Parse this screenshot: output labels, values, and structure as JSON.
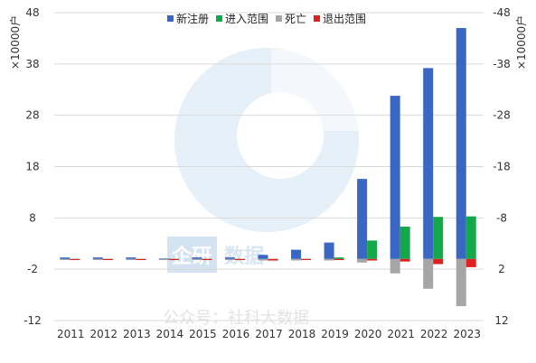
{
  "chart_data": {
    "type": "bar",
    "title": "",
    "categories": [
      "2011",
      "2012",
      "2013",
      "2014",
      "2015",
      "2016",
      "2017",
      "2018",
      "2019",
      "2020",
      "2021",
      "2022",
      "2023"
    ],
    "series": [
      {
        "name": "新注册",
        "color": "#3a66c4",
        "values": [
          0.3,
          0.3,
          0.3,
          0.1,
          0.3,
          0.3,
          0.8,
          1.8,
          3.2,
          15.6,
          31.8,
          37.2,
          45.0
        ]
      },
      {
        "name": "进入范围",
        "color": "#15a84a",
        "values": [
          0.0,
          0.0,
          0.0,
          0.0,
          0.0,
          0.0,
          -0.1,
          0.0,
          0.3,
          3.6,
          6.3,
          8.2,
          8.3
        ]
      },
      {
        "name": "死亡",
        "color": "#a6a6a6",
        "values": [
          0.0,
          0.0,
          0.0,
          0.0,
          0.0,
          0.0,
          -0.3,
          -0.3,
          -0.3,
          -0.7,
          -2.8,
          -5.8,
          -9.2
        ]
      },
      {
        "name": "退出范围",
        "color": "#e02020",
        "values": [
          -0.2,
          -0.1,
          -0.2,
          -0.2,
          -0.2,
          -0.2,
          -0.3,
          -0.2,
          -0.1,
          -0.3,
          -0.5,
          -1.0,
          -1.6
        ]
      }
    ],
    "ylabel_left": "×10000户",
    "ylabel_right": "×10000户",
    "ylim": [
      -12,
      48
    ],
    "yticks_left": [
      "-12",
      "-2",
      "8",
      "18",
      "28",
      "38",
      "48"
    ],
    "yticks_right": [
      "12",
      "2",
      "-8",
      "-18",
      "-28",
      "-38",
      "-48"
    ],
    "ytick_values": [
      -12,
      -2,
      8,
      18,
      28,
      38,
      48
    ],
    "grid": true,
    "legend_position": "top-center"
  },
  "watermark": {
    "logo_text": "企研",
    "brand_text": "数据",
    "subtitle": "公众号：社科大数据"
  }
}
